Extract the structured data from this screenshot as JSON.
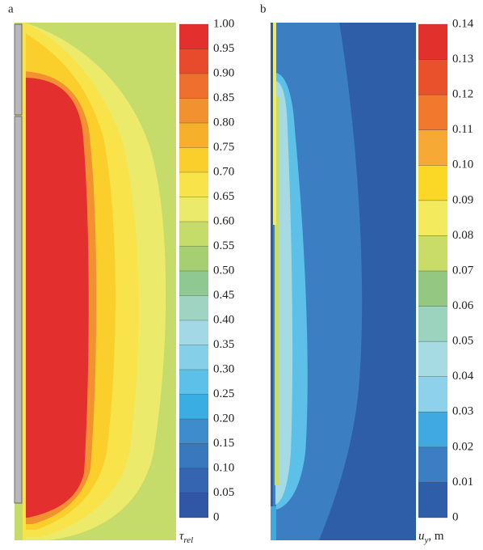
{
  "chart_data": [
    {
      "type": "contour",
      "panel_label": "a",
      "zlim": [
        0,
        1
      ],
      "zticks": [
        0,
        0.05,
        {
          "value": 0.1,
          "label": "0.10"
        },
        0.15,
        {
          "value": 0.2,
          "label": "0.20"
        },
        0.25,
        {
          "value": 0.3,
          "label": "0.30"
        },
        0.35,
        {
          "value": 0.4,
          "label": "0.40"
        },
        0.45,
        {
          "value": 0.5,
          "label": "0.50"
        },
        0.55,
        {
          "value": 0.6,
          "label": "0.60"
        },
        0.65,
        {
          "value": 0.7,
          "label": "0.70"
        },
        0.75,
        {
          "value": 0.8,
          "label": "0.80"
        },
        0.85,
        {
          "value": 0.9,
          "label": "0.90"
        },
        0.95,
        {
          "value": 1,
          "label": "1.00"
        }
      ],
      "colors": [
        "#2f57a6",
        "#3565b0",
        "#3a78bd",
        "#3e8ccc",
        "#3aaee3",
        "#5cc0e8",
        "#86cfe8",
        "#a3d9e6",
        "#9fd4c3",
        "#8fc890",
        "#a6cf72",
        "#c5dc6a",
        "#ecea6a",
        "#f8e34a",
        "#fbcf2b",
        "#f7b02a",
        "#f29130",
        "#ee6f2e",
        "#e84b2c",
        "#e32f2d"
      ],
      "colorbar_label": {
        "symbol": "τ",
        "subscript": "rel"
      }
    },
    {
      "type": "contour",
      "panel_label": "b",
      "zlim": [
        0,
        0.14
      ],
      "zticks": [
        0,
        0.01,
        0.02,
        0.03,
        0.04,
        0.05,
        0.06,
        0.07,
        0.08,
        0.09,
        {
          "value": 0.1,
          "label": "0.10"
        },
        0.11,
        0.12,
        0.13,
        0.14
      ],
      "colors": [
        "#2f5ea8",
        "#3b7fc2",
        "#3fa9e0",
        "#8dd2ea",
        "#a7dbe3",
        "#9cd3bf",
        "#94c882",
        "#c8dc67",
        "#f3ea5e",
        "#fbd825",
        "#f6a935",
        "#f0792e",
        "#e9512c",
        "#e2302c"
      ],
      "colorbar_label": {
        "symbol": "u",
        "subscript": "y",
        "suffix": ", m"
      }
    }
  ]
}
